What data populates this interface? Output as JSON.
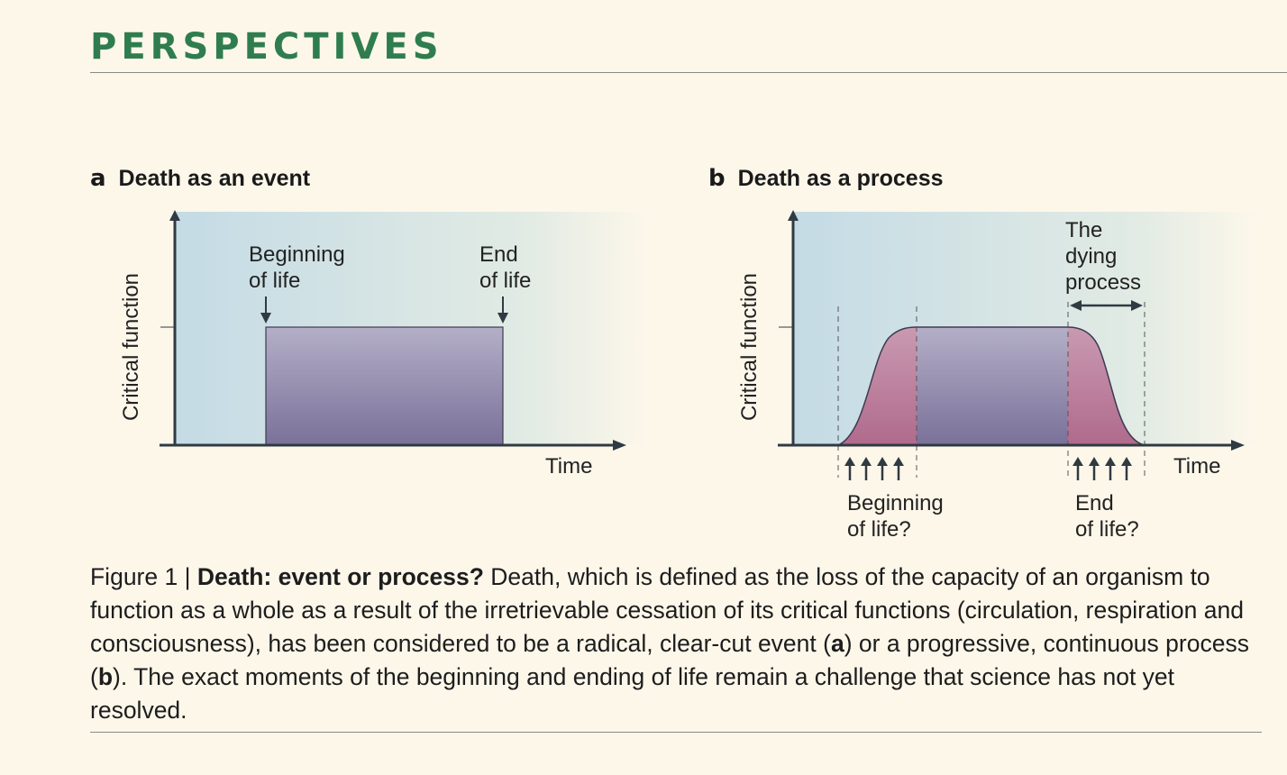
{
  "header": {
    "section": "PERSPECTIVES"
  },
  "panel_a": {
    "letter": "a",
    "title": "Death as an event",
    "y_label": "Critical function",
    "x_label": "Time",
    "beginning_label": [
      "Beginning",
      "of life"
    ],
    "end_label": [
      "End",
      "of life"
    ]
  },
  "panel_b": {
    "letter": "b",
    "title": "Death as a process",
    "y_label": "Critical function",
    "x_label": "Time",
    "dying_label": [
      "The",
      "dying",
      "process"
    ],
    "beginning_label": [
      "Beginning",
      "of life?"
    ],
    "end_label": [
      "End",
      "of life?"
    ]
  },
  "caption": {
    "fig_num": "Figure 1 | ",
    "fig_title": "Death: event or process?",
    "text_1": " Death, which is defined as the loss of the capacity of an organism to function as a whole as a result of the irretrievable cessation of its critical functions (circulation, respiration and consciousness), has been considered to be a radical, clear-cut event (",
    "ref_a": "a",
    "text_2": ") or a progressive, continuous process (",
    "ref_b": "b",
    "text_3": "). The exact moments of the beginning and ending of life remain a challenge that science has not yet resolved."
  },
  "colors": {
    "accent": "#2f7d4f",
    "plot_bg": "#c7dde6",
    "block_top": "#b3adc6",
    "block_bottom": "#7a7199",
    "ramp_pink": "#b36c8c",
    "axis": "#2f3a42"
  }
}
